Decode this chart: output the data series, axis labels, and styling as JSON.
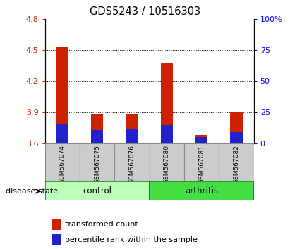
{
  "title": "GDS5243 / 10516303",
  "samples": [
    "GSM567074",
    "GSM567075",
    "GSM567076",
    "GSM567080",
    "GSM567081",
    "GSM567082"
  ],
  "red_tops": [
    4.525,
    3.88,
    3.885,
    4.38,
    3.675,
    3.9
  ],
  "blue_tops": [
    3.785,
    3.725,
    3.73,
    3.775,
    3.655,
    3.705
  ],
  "bar_bottom": 3.6,
  "ylim_left": [
    3.6,
    4.8
  ],
  "ylim_right": [
    0,
    100
  ],
  "yticks_left": [
    3.6,
    3.9,
    4.2,
    4.5,
    4.8
  ],
  "yticks_right": [
    0,
    25,
    50,
    75,
    100
  ],
  "grid_lines": [
    3.9,
    4.2,
    4.5
  ],
  "red_color": "#cc2200",
  "blue_color": "#2222cc",
  "control_color": "#bbffbb",
  "arthritis_color": "#44dd44",
  "bar_width": 0.35,
  "legend_red": "transformed count",
  "legend_blue": "percentile rank within the sample"
}
